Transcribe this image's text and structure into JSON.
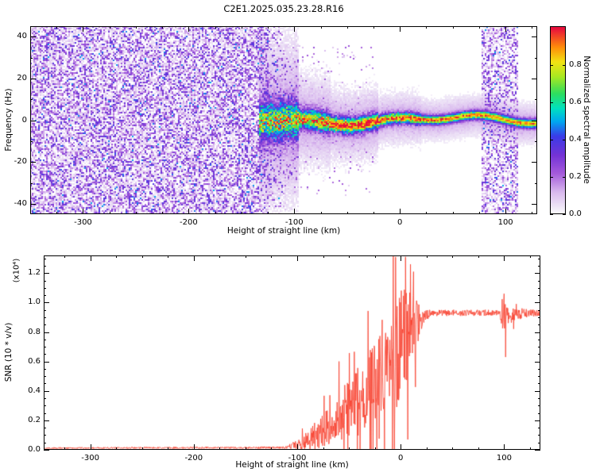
{
  "title": "C2E1.2025.035.23.28.R16",
  "frame_color": "#000000",
  "chart_data": [
    {
      "type": "heatmap",
      "panel": "spectrogram",
      "xlabel": "Height of straight line (km)",
      "ylabel": "Frequency (Hz)",
      "xlim": [
        -350,
        130
      ],
      "ylim": [
        -45,
        45
      ],
      "x_minor_step": 25,
      "y_minor_step": 10,
      "xticks": [
        {
          "v": -300,
          "label": "-300"
        },
        {
          "v": -200,
          "label": "-200"
        },
        {
          "v": -100,
          "label": "-100"
        },
        {
          "v": 0,
          "label": "0"
        },
        {
          "v": 100,
          "label": "100"
        }
      ],
      "yticks": [
        {
          "v": 40,
          "label": "40"
        },
        {
          "v": 20,
          "label": "20"
        },
        {
          "v": 0,
          "label": "0"
        },
        {
          "v": -20,
          "label": "-20"
        },
        {
          "v": -40,
          "label": "-40"
        }
      ],
      "colorbar": {
        "label": "Normalized spectral amplitude",
        "lim": [
          0,
          1.01
        ],
        "ticks": [
          {
            "v": 0,
            "label": "0.0"
          },
          {
            "v": 0.2,
            "label": "0.2"
          },
          {
            "v": 0.4,
            "label": "0.4"
          },
          {
            "v": 0.6,
            "label": "0.6"
          },
          {
            "v": 0.8,
            "label": "0.8"
          }
        ]
      },
      "colormap": [
        [
          0,
          "#ffffff"
        ],
        [
          0.04,
          "#efe7f7"
        ],
        [
          0.12,
          "#d9b9ee"
        ],
        [
          0.22,
          "#a55bdb"
        ],
        [
          0.32,
          "#7433d6"
        ],
        [
          0.42,
          "#3b3be8"
        ],
        [
          0.5,
          "#00a8f0"
        ],
        [
          0.57,
          "#00e0c0"
        ],
        [
          0.65,
          "#2edd5e"
        ],
        [
          0.74,
          "#a8e822"
        ],
        [
          0.82,
          "#f2e313"
        ],
        [
          0.9,
          "#ff8c0a"
        ],
        [
          1,
          "#e8103c"
        ]
      ],
      "features": {
        "noise_region_end_km": -124,
        "noise_fade_km": 18,
        "interference_band_km": [
          78,
          112
        ],
        "signal_start_km": -133,
        "signal_center_hz": 0,
        "description": "Dense purple speckle noise fills all frequencies left of about -124 km; a narrow spectral line near 0 Hz emerges around -130 km, broad and noisy until about -95 km, brightest (yellow/orange/red) between -65 and -20 km, then continues as a thin green/cyan line with a pale halo out to 130 km; a vertical speckle-noise band spans all frequencies near 78-112 km."
      }
    },
    {
      "type": "line",
      "panel": "snr",
      "xlabel": "Height of straight line (km)",
      "ylabel": "SNR (10 * v/v)",
      "y_scale_note": "(x10⁴)",
      "xlim": [
        -345,
        135
      ],
      "ylim": [
        0,
        1.32
      ],
      "x_minor_step": 25,
      "y_minor_step": 0.05,
      "xticks": [
        {
          "v": -300,
          "label": "-300"
        },
        {
          "v": -200,
          "label": "-200"
        },
        {
          "v": -100,
          "label": "-100"
        },
        {
          "v": 0,
          "label": "0"
        },
        {
          "v": 100,
          "label": "100"
        }
      ],
      "yticks": [
        {
          "v": 0,
          "label": "0.0"
        },
        {
          "v": 0.2,
          "label": "0.2"
        },
        {
          "v": 0.4,
          "label": "0.4"
        },
        {
          "v": 0.6,
          "label": "0.6"
        },
        {
          "v": 0.8,
          "label": "0.8"
        },
        {
          "v": 1,
          "label": "1.0"
        },
        {
          "v": 1.2,
          "label": "1.2"
        }
      ],
      "series": [
        {
          "name": "SNR",
          "color": "#f83b28",
          "profile": [
            {
              "x": -345,
              "y": 0.012,
              "noise": 0.006
            },
            {
              "x": -112,
              "y": 0.015,
              "noise": 0.009
            },
            {
              "x": -96,
              "y": 0.04,
              "noise": 0.05
            },
            {
              "x": -76,
              "y": 0.12,
              "noise": 0.13
            },
            {
              "x": -56,
              "y": 0.24,
              "noise": 0.2
            },
            {
              "x": -36,
              "y": 0.38,
              "noise": 0.28
            },
            {
              "x": -20,
              "y": 0.5,
              "noise": 0.34
            },
            {
              "x": -8,
              "y": 0.6,
              "noise": 0.42
            },
            {
              "x": 2,
              "y": 0.72,
              "noise": 0.46
            },
            {
              "x": 12,
              "y": 0.82,
              "noise": 0.28
            },
            {
              "x": 22,
              "y": 0.9,
              "noise": 0.06
            },
            {
              "x": 30,
              "y": 0.93,
              "noise": 0.025
            },
            {
              "x": 96,
              "y": 0.93,
              "noise": 0.025
            },
            {
              "x": 99,
              "y": 0.9,
              "noise": 0.16
            },
            {
              "x": 104,
              "y": 0.92,
              "noise": 0.06
            },
            {
              "x": 135,
              "y": 0.93,
              "noise": 0.02
            }
          ],
          "spikes": [
            {
              "x": -5,
              "y": 1.31
            },
            {
              "x": 7,
              "y": 0.07
            },
            {
              "x": 9.5,
              "y": 1.26
            },
            {
              "x": 100,
              "y": 1.06
            },
            {
              "x": 101.5,
              "y": 0.63
            }
          ]
        }
      ]
    }
  ]
}
